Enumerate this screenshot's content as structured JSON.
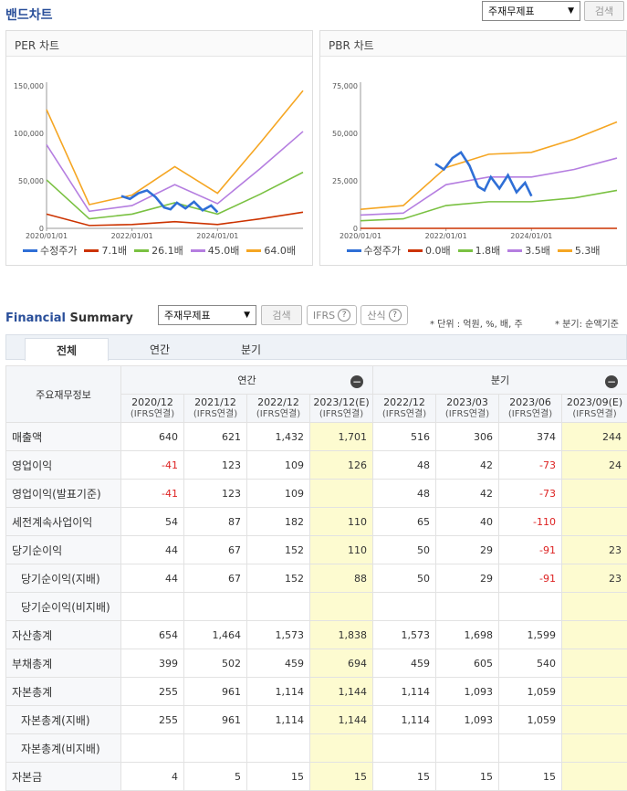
{
  "band": {
    "title": "밴드차트",
    "select_value": "주재무제표",
    "search_label": "검색"
  },
  "per_chart": {
    "title": "PER 차트",
    "chart_data": {
      "type": "line",
      "title": "PER 차트",
      "ylim": [
        0,
        150000
      ],
      "yticks": [
        "150,000",
        "100,000",
        "50,000",
        "0"
      ],
      "ytick_values": [
        150000,
        100000,
        50000,
        0
      ],
      "xticks": [
        "2020/01/01",
        "2022/01/01",
        "2024/01/01"
      ],
      "x": [
        "2020/01",
        "2021/01",
        "2022/01",
        "2023/01",
        "2024/01",
        "2025/01",
        "2026/01"
      ],
      "series": [
        {
          "name": "7.1배",
          "color": "#cc3300",
          "values": [
            15000,
            3000,
            4000,
            7000,
            4000,
            10000,
            17000
          ]
        },
        {
          "name": "26.1배",
          "color": "#7ac142",
          "values": [
            51000,
            10000,
            15000,
            27000,
            15000,
            36000,
            59000
          ]
        },
        {
          "name": "45.0배",
          "color": "#b57ee0",
          "values": [
            88000,
            18000,
            24000,
            46000,
            26000,
            63000,
            102000
          ]
        },
        {
          "name": "64.0배",
          "color": "#f5a623",
          "values": [
            125000,
            25000,
            35000,
            65000,
            37000,
            90000,
            145000
          ]
        }
      ],
      "price": {
        "name": "수정주가",
        "color": "#2f6fd6",
        "x": [
          2021.75,
          2021.95,
          2022.15,
          2022.35,
          2022.55,
          2022.75,
          2022.9,
          2023.05,
          2023.25,
          2023.45,
          2023.65,
          2023.85,
          2024.0
        ],
        "values": [
          34000,
          31000,
          37000,
          40000,
          33000,
          22000,
          20000,
          27000,
          21000,
          28000,
          19000,
          24000,
          17000
        ]
      }
    }
  },
  "pbr_chart": {
    "title": "PBR 차트",
    "chart_data": {
      "type": "line",
      "title": "PBR 차트",
      "ylim": [
        0,
        75000
      ],
      "yticks": [
        "75,000",
        "50,000",
        "25,000",
        "0"
      ],
      "ytick_values": [
        75000,
        50000,
        25000,
        0
      ],
      "xticks": [
        "2020/01/01",
        "2022/01/01",
        "2024/01/01"
      ],
      "x": [
        "2020/01",
        "2021/01",
        "2022/01",
        "2023/01",
        "2024/01",
        "2025/01",
        "2026/01"
      ],
      "series": [
        {
          "name": "0.0배",
          "color": "#cc3300",
          "values": [
            0,
            0,
            0,
            0,
            0,
            0,
            0
          ]
        },
        {
          "name": "1.8배",
          "color": "#7ac142",
          "values": [
            4000,
            5000,
            12000,
            14000,
            14000,
            16000,
            20000
          ]
        },
        {
          "name": "3.5배",
          "color": "#b57ee0",
          "values": [
            7000,
            8000,
            23000,
            27000,
            27000,
            31000,
            37000
          ]
        },
        {
          "name": "5.3배",
          "color": "#f5a623",
          "values": [
            10000,
            12000,
            32000,
            39000,
            40000,
            47000,
            56000
          ]
        }
      ],
      "price": {
        "name": "수정주가",
        "color": "#2f6fd6",
        "x": [
          2021.75,
          2021.95,
          2022.15,
          2022.35,
          2022.55,
          2022.75,
          2022.9,
          2023.05,
          2023.25,
          2023.45,
          2023.65,
          2023.85,
          2024.0
        ],
        "values": [
          34000,
          31000,
          37000,
          40000,
          33000,
          22000,
          20000,
          27000,
          21000,
          28000,
          19000,
          24000,
          17000
        ]
      }
    }
  },
  "fs": {
    "title_main": "Financial",
    "title_sub": " Summary",
    "select_value": "주재무제표",
    "search_label": "검색",
    "ifrs_label": "IFRS",
    "formula_label": "산식",
    "unit_note": "* 단위 : 억원, %, 배, 주",
    "quarter_note": "* 분기: 순액기준",
    "tabs": [
      "전체",
      "연간",
      "분기"
    ],
    "row_header": "주요재무정보",
    "annual_label": "연간",
    "quarter_label": "분기",
    "columns": [
      {
        "date": "2020/12",
        "sub": "(IFRS연결)",
        "est": false
      },
      {
        "date": "2021/12",
        "sub": "(IFRS연결)",
        "est": false
      },
      {
        "date": "2022/12",
        "sub": "(IFRS연결)",
        "est": false
      },
      {
        "date": "2023/12(E)",
        "sub": "(IFRS연결)",
        "est": true
      },
      {
        "date": "2022/12",
        "sub": "(IFRS연결)",
        "est": false
      },
      {
        "date": "2023/03",
        "sub": "(IFRS연결)",
        "est": false
      },
      {
        "date": "2023/06",
        "sub": "(IFRS연결)",
        "est": false
      },
      {
        "date": "2023/09(E)",
        "sub": "(IFRS연결)",
        "est": true
      }
    ],
    "rows": [
      {
        "label": "매출액",
        "sub": false,
        "values": [
          "640",
          "621",
          "1,432",
          "1,701",
          "516",
          "306",
          "374",
          "244"
        ]
      },
      {
        "label": "영업이익",
        "sub": false,
        "values": [
          "-41",
          "123",
          "109",
          "126",
          "48",
          "42",
          "-73",
          "24"
        ]
      },
      {
        "label": "영업이익(발표기준)",
        "sub": false,
        "values": [
          "-41",
          "123",
          "109",
          "",
          "48",
          "42",
          "-73",
          ""
        ]
      },
      {
        "label": "세전계속사업이익",
        "sub": false,
        "values": [
          "54",
          "87",
          "182",
          "110",
          "65",
          "40",
          "-110",
          ""
        ]
      },
      {
        "label": "당기순이익",
        "sub": false,
        "values": [
          "44",
          "67",
          "152",
          "110",
          "50",
          "29",
          "-91",
          "23"
        ]
      },
      {
        "label": "당기순이익(지배)",
        "sub": true,
        "values": [
          "44",
          "67",
          "152",
          "88",
          "50",
          "29",
          "-91",
          "23"
        ]
      },
      {
        "label": "당기순이익(비지배)",
        "sub": true,
        "values": [
          "",
          "",
          "",
          "",
          "",
          "",
          "",
          ""
        ]
      },
      {
        "label": "자산총계",
        "sub": false,
        "values": [
          "654",
          "1,464",
          "1,573",
          "1,838",
          "1,573",
          "1,698",
          "1,599",
          ""
        ]
      },
      {
        "label": "부채총계",
        "sub": false,
        "values": [
          "399",
          "502",
          "459",
          "694",
          "459",
          "605",
          "540",
          ""
        ]
      },
      {
        "label": "자본총계",
        "sub": false,
        "values": [
          "255",
          "961",
          "1,114",
          "1,144",
          "1,114",
          "1,093",
          "1,059",
          ""
        ]
      },
      {
        "label": "자본총계(지배)",
        "sub": true,
        "values": [
          "255",
          "961",
          "1,114",
          "1,144",
          "1,114",
          "1,093",
          "1,059",
          ""
        ]
      },
      {
        "label": "자본총계(비지배)",
        "sub": true,
        "values": [
          "",
          "",
          "",
          "",
          "",
          "",
          "",
          ""
        ]
      },
      {
        "label": "자본금",
        "sub": false,
        "values": [
          "4",
          "5",
          "15",
          "15",
          "15",
          "15",
          "15",
          ""
        ]
      }
    ]
  }
}
